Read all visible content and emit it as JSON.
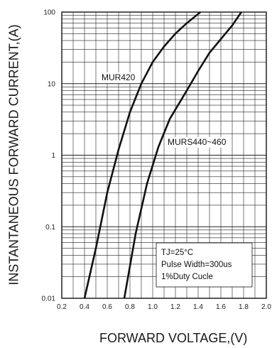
{
  "chart_data": {
    "type": "line",
    "xlabel": "FORWARD VOLTAGE,(V)",
    "ylabel": "INSTANTANEOUS FORWARD CURRENT,(A)",
    "xlim": [
      0.2,
      2.0
    ],
    "ylim": [
      0.01,
      100
    ],
    "y_scale": "log",
    "x_ticks": [
      "0.2",
      "0.4",
      "0.6",
      "0.8",
      "1.0",
      "1.2",
      "1.4",
      "1.6",
      "1.8",
      "2.0"
    ],
    "y_ticks": [
      "0.01",
      "0.1",
      "1",
      "10",
      "100"
    ],
    "grid": true,
    "series": [
      {
        "name": "MUR420",
        "x": [
          0.4,
          0.5,
          0.6,
          0.7,
          0.8,
          0.9,
          1.0,
          1.1,
          1.2,
          1.3,
          1.42
        ],
        "y": [
          0.01,
          0.05,
          0.3,
          1.2,
          4.0,
          10,
          20,
          33,
          50,
          70,
          100
        ]
      },
      {
        "name": "MURS440~460",
        "x": [
          0.75,
          0.85,
          0.95,
          1.05,
          1.15,
          1.3,
          1.4,
          1.5,
          1.6,
          1.7,
          1.78
        ],
        "y": [
          0.01,
          0.08,
          0.4,
          1.3,
          3.2,
          8.0,
          15,
          27,
          42,
          65,
          100
        ]
      }
    ],
    "annotations": [
      "TJ=25°C",
      "Pulse Width=300us",
      "1%Duty Cucle"
    ]
  },
  "colors": {
    "line": "#111111",
    "grid": "#222222"
  }
}
